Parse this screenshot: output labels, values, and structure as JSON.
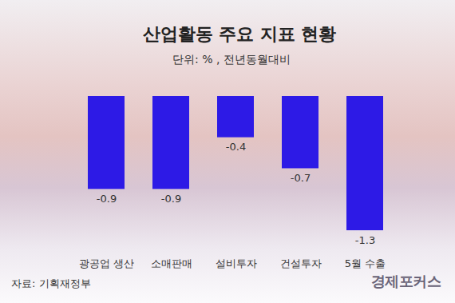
{
  "chart_data": {
    "type": "bar",
    "title": "산업활동 주요 지표 현황",
    "subtitle": "단위: % , 전년동월대비",
    "caption": "자료: 기획재정부",
    "annotations": [
      "경제포커스"
    ],
    "categories": [
      "광공업 생산",
      "소매판매",
      "설비투자",
      "건설투자",
      "5월 수출"
    ],
    "values": [
      -0.9,
      -0.9,
      -0.4,
      -0.7,
      -1.3
    ],
    "color": "#2d1ae6",
    "ylim": [
      -1.3,
      0
    ],
    "data_labels": true,
    "tick_labels": "x",
    "grid": false
  }
}
